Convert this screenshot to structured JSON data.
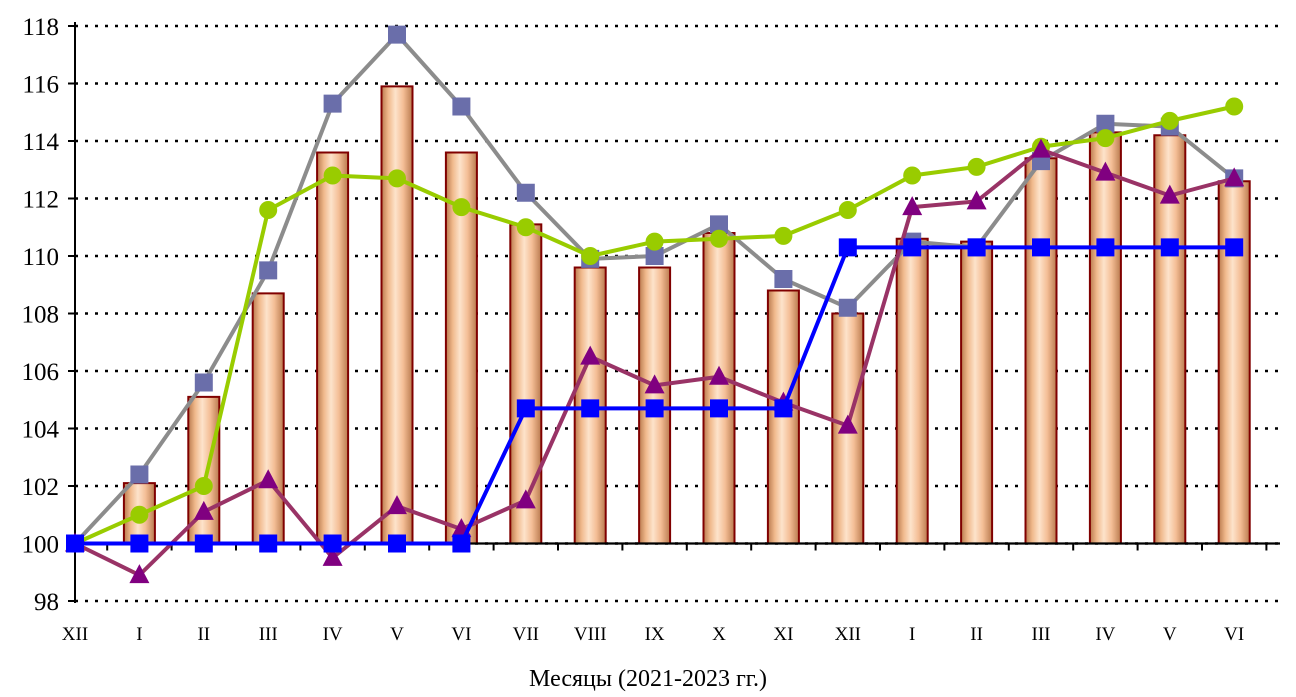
{
  "chart_data": {
    "type": "bar",
    "xlabel": "Месяцы (2021-2023 гг.)",
    "ylabel": "",
    "ylim": [
      98,
      118
    ],
    "yticks": [
      98,
      100,
      102,
      104,
      106,
      108,
      110,
      112,
      114,
      116,
      118
    ],
    "grid": true,
    "categories": [
      "XII",
      "I",
      "II",
      "III",
      "IV",
      "V",
      "VI",
      "VII",
      "VIII",
      "IX",
      "X",
      "XI",
      "XII",
      "I",
      "II",
      "III",
      "IV",
      "V",
      "VI"
    ],
    "bars": {
      "values": [
        100,
        102.1,
        105.1,
        108.7,
        113.6,
        115.9,
        113.6,
        111.1,
        109.6,
        109.6,
        110.8,
        108.8,
        108.0,
        110.6,
        110.5,
        113.4,
        114.3,
        114.2,
        112.6
      ],
      "color": "#F4BE96"
    },
    "series": [
      {
        "marker": "square",
        "color": "#8C8C8C",
        "marker_color": "#6A6EAA",
        "values": [
          100,
          102.4,
          105.6,
          109.5,
          115.3,
          117.7,
          115.2,
          112.2,
          109.9,
          110.0,
          111.1,
          109.2,
          108.2,
          110.5,
          110.3,
          113.3,
          114.6,
          114.5,
          112.7
        ]
      },
      {
        "marker": "circle",
        "color": "#99CC00",
        "marker_color": "#99CC00",
        "values": [
          100,
          101.0,
          102.0,
          111.6,
          112.8,
          112.7,
          111.7,
          111.0,
          110.0,
          110.5,
          110.6,
          110.7,
          111.6,
          112.8,
          113.1,
          113.8,
          114.1,
          114.7,
          115.2
        ]
      },
      {
        "marker": "triangle",
        "color": "#993366",
        "marker_color": "#800080",
        "values": [
          100,
          98.9,
          101.1,
          102.2,
          99.5,
          101.3,
          100.5,
          101.5,
          106.5,
          105.5,
          105.8,
          104.9,
          104.1,
          111.7,
          111.9,
          113.7,
          112.9,
          112.1,
          112.7
        ]
      },
      {
        "marker": "square",
        "color": "#0000FF",
        "marker_color": "#0000FF",
        "values": [
          100,
          100,
          100,
          100,
          100,
          100,
          100,
          104.7,
          104.7,
          104.7,
          104.7,
          104.7,
          110.3,
          110.3,
          110.3,
          110.3,
          110.3,
          110.3,
          110.3
        ]
      }
    ]
  }
}
